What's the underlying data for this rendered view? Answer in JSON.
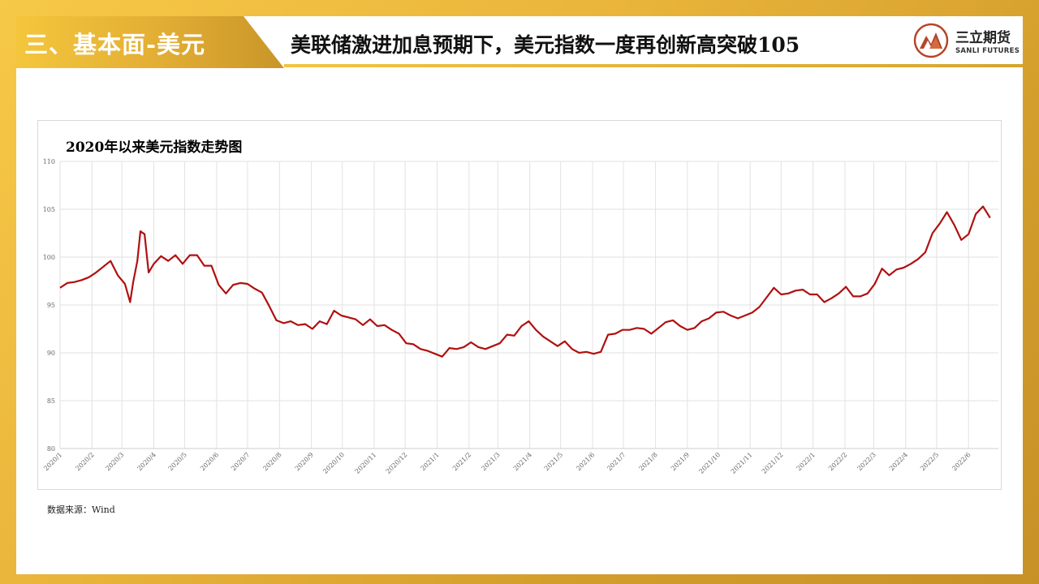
{
  "header": {
    "section_label": "三、基本面-美元",
    "title": "美联储激进加息预期下，美元指数一度再创新高突破105"
  },
  "logo": {
    "name_cn": "三立期货",
    "name_en": "SANLI FUTURES",
    "icon": "mountain-logo-icon"
  },
  "chart_data": {
    "type": "line",
    "title": "2020年以来美元指数走势图",
    "xlabel": "",
    "ylabel": "",
    "ylim": [
      80,
      110
    ],
    "yticks": [
      80,
      85,
      90,
      95,
      100,
      105,
      110
    ],
    "xlim": [
      "2020-01-01",
      "2022-06-30"
    ],
    "xticks": [
      "2020/1",
      "2020/2",
      "2020/3",
      "2020/4",
      "2020/5",
      "2020/6",
      "2020/7",
      "2020/8",
      "2020/9",
      "2020/10",
      "2020/11",
      "2020/12",
      "2021/1",
      "2021/2",
      "2021/3",
      "2021/4",
      "2021/5",
      "2021/6",
      "2021/7",
      "2021/8",
      "2021/9",
      "2021/10",
      "2021/11",
      "2021/12",
      "2022/1",
      "2022/2",
      "2022/3",
      "2022/4",
      "2022/5",
      "2022/6"
    ],
    "grid": true,
    "series": [
      {
        "color": "#b01010",
        "x": [
          "2020-01-01",
          "2020-01-08",
          "2020-01-15",
          "2020-01-22",
          "2020-01-29",
          "2020-02-05",
          "2020-02-12",
          "2020-02-19",
          "2020-02-26",
          "2020-03-04",
          "2020-03-09",
          "2020-03-12",
          "2020-03-16",
          "2020-03-19",
          "2020-03-23",
          "2020-03-27",
          "2020-04-01",
          "2020-04-08",
          "2020-04-15",
          "2020-04-22",
          "2020-04-29",
          "2020-05-06",
          "2020-05-13",
          "2020-05-20",
          "2020-05-27",
          "2020-06-03",
          "2020-06-10",
          "2020-06-17",
          "2020-06-24",
          "2020-07-01",
          "2020-07-08",
          "2020-07-15",
          "2020-07-22",
          "2020-07-29",
          "2020-08-05",
          "2020-08-12",
          "2020-08-19",
          "2020-08-26",
          "2020-09-02",
          "2020-09-09",
          "2020-09-16",
          "2020-09-23",
          "2020-09-30",
          "2020-10-07",
          "2020-10-14",
          "2020-10-21",
          "2020-10-28",
          "2020-11-04",
          "2020-11-11",
          "2020-11-18",
          "2020-11-25",
          "2020-12-02",
          "2020-12-09",
          "2020-12-16",
          "2020-12-23",
          "2020-12-30",
          "2021-01-06",
          "2021-01-13",
          "2021-01-20",
          "2021-01-27",
          "2021-02-03",
          "2021-02-10",
          "2021-02-17",
          "2021-02-24",
          "2021-03-03",
          "2021-03-10",
          "2021-03-17",
          "2021-03-24",
          "2021-03-31",
          "2021-04-07",
          "2021-04-14",
          "2021-04-21",
          "2021-04-28",
          "2021-05-05",
          "2021-05-12",
          "2021-05-19",
          "2021-05-26",
          "2021-06-02",
          "2021-06-09",
          "2021-06-16",
          "2021-06-23",
          "2021-06-30",
          "2021-07-07",
          "2021-07-14",
          "2021-07-21",
          "2021-07-28",
          "2021-08-04",
          "2021-08-11",
          "2021-08-18",
          "2021-08-25",
          "2021-09-01",
          "2021-09-08",
          "2021-09-15",
          "2021-09-22",
          "2021-09-29",
          "2021-10-06",
          "2021-10-13",
          "2021-10-20",
          "2021-10-27",
          "2021-11-03",
          "2021-11-10",
          "2021-11-17",
          "2021-11-24",
          "2021-12-01",
          "2021-12-08",
          "2021-12-15",
          "2021-12-22",
          "2021-12-29",
          "2022-01-05",
          "2022-01-12",
          "2022-01-19",
          "2022-01-26",
          "2022-02-02",
          "2022-02-09",
          "2022-02-16",
          "2022-02-23",
          "2022-03-02",
          "2022-03-09",
          "2022-03-16",
          "2022-03-23",
          "2022-03-30",
          "2022-04-06",
          "2022-04-13",
          "2022-04-20",
          "2022-04-27",
          "2022-05-04",
          "2022-05-11",
          "2022-05-18",
          "2022-05-25",
          "2022-06-01",
          "2022-06-08",
          "2022-06-15",
          "2022-06-22"
        ],
        "values": [
          96.8,
          97.3,
          97.4,
          97.6,
          97.9,
          98.4,
          99.0,
          99.6,
          98.1,
          97.2,
          95.3,
          97.4,
          99.6,
          102.7,
          102.4,
          98.4,
          99.3,
          100.1,
          99.6,
          100.2,
          99.3,
          100.2,
          100.2,
          99.1,
          99.1,
          97.1,
          96.2,
          97.1,
          97.3,
          97.2,
          96.7,
          96.3,
          94.9,
          93.4,
          93.1,
          93.3,
          92.9,
          93.0,
          92.5,
          93.3,
          93.0,
          94.4,
          93.9,
          93.7,
          93.5,
          92.9,
          93.5,
          92.8,
          92.9,
          92.4,
          92.0,
          91.0,
          90.9,
          90.4,
          90.2,
          89.9,
          89.6,
          90.5,
          90.4,
          90.6,
          91.1,
          90.6,
          90.4,
          90.7,
          91.0,
          91.9,
          91.8,
          92.8,
          93.3,
          92.4,
          91.7,
          91.2,
          90.7,
          91.2,
          90.4,
          90.0,
          90.1,
          89.9,
          90.1,
          91.9,
          92.0,
          92.4,
          92.4,
          92.6,
          92.5,
          92.0,
          92.6,
          93.2,
          93.4,
          92.8,
          92.4,
          92.6,
          93.3,
          93.6,
          94.2,
          94.3,
          93.9,
          93.6,
          93.9,
          94.2,
          94.8,
          95.8,
          96.8,
          96.1,
          96.2,
          96.5,
          96.6,
          96.1,
          96.1,
          95.3,
          95.7,
          96.2,
          96.9,
          95.9,
          95.9,
          96.2,
          97.2,
          98.8,
          98.1,
          98.7,
          98.9,
          99.3,
          99.8,
          100.5,
          102.5,
          103.5,
          104.7,
          103.4,
          101.8,
          102.4,
          104.5,
          105.3,
          104.1
        ]
      }
    ]
  },
  "source": "数据来源：Wind"
}
